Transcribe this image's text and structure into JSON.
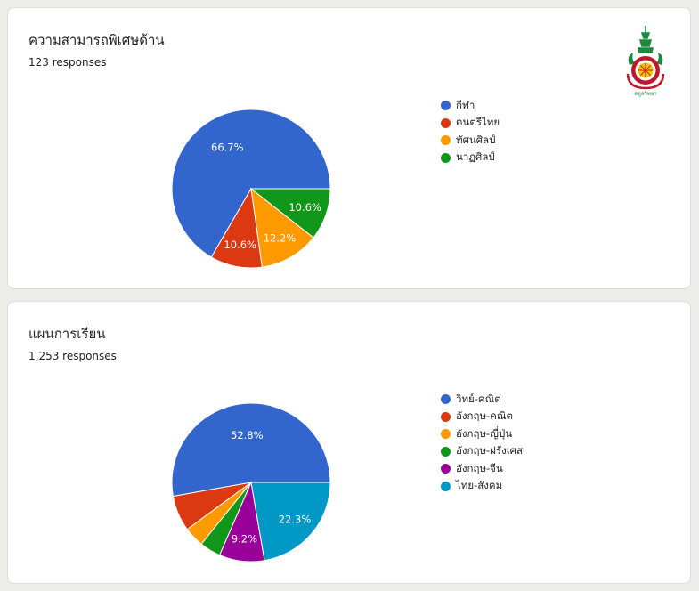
{
  "cards": [
    {
      "title": "ความสามารถพิเศษด้าน",
      "responses": "123 responses"
    },
    {
      "title": "แผนการเรียน",
      "responses": "1,253 responses"
    }
  ],
  "logo": {
    "text": "สตูลวิทยา"
  },
  "chart_data": [
    {
      "type": "pie",
      "title": "ความสามารถพิเศษด้าน",
      "categories": [
        "กีฬา",
        "ดนตรีไทย",
        "ทัศนศิลป์",
        "นาฏศิลป์"
      ],
      "values": [
        66.7,
        10.6,
        12.2,
        10.6
      ],
      "labels": [
        "66.7%",
        "10.6%",
        "12.2%",
        "10.6%"
      ],
      "colors": [
        "#3366cc",
        "#dc3912",
        "#ff9900",
        "#109618"
      ],
      "legend": "right"
    },
    {
      "type": "pie",
      "title": "แผนการเรียน",
      "categories": [
        "วิทย์-คณิต",
        "อังกฤษ-คณิต",
        "อังกฤษ-ญี่ปุ่น",
        "อังกฤษ-ฝรั่งเศส",
        "อังกฤษ-จีน",
        "ไทย-สังคม"
      ],
      "values": [
        52.8,
        7.3,
        4.1,
        4.3,
        9.2,
        22.3
      ],
      "labels": [
        "52.8%",
        "",
        "",
        "",
        "9.2%",
        "22.3%"
      ],
      "colors": [
        "#3366cc",
        "#dc3912",
        "#ff9900",
        "#109618",
        "#990099",
        "#0099c6"
      ],
      "legend": "right"
    }
  ]
}
